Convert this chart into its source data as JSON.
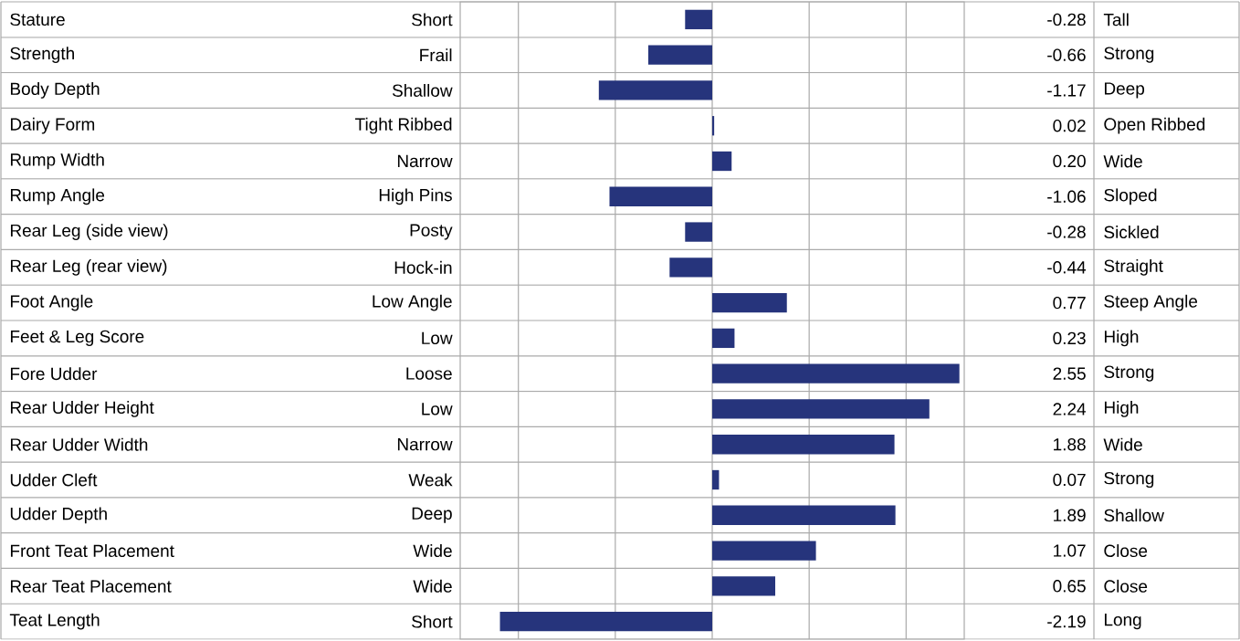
{
  "chart_data": {
    "type": "bar",
    "orientation": "horizontal",
    "categories": [
      "Stature",
      "Strength",
      "Body Depth",
      "Dairy Form",
      "Rump Width",
      "Rump Angle",
      "Rear Leg (side view)",
      "Rear Leg (rear view)",
      "Foot Angle",
      "Feet & Leg Score",
      "Fore Udder",
      "Rear Udder Height",
      "Rear Udder Width",
      "Udder Cleft",
      "Udder Depth",
      "Front Teat Placement",
      "Rear Teat Placement",
      "Teat Length"
    ],
    "values": [
      -0.28,
      -0.66,
      -1.17,
      0.02,
      0.2,
      -1.06,
      -0.28,
      -0.44,
      0.77,
      0.23,
      2.55,
      2.24,
      1.88,
      0.07,
      1.89,
      1.07,
      0.65,
      -2.19
    ],
    "value_labels": [
      "-0.28",
      "-0.66",
      "-1.17",
      "0.02",
      "0.20",
      "-1.06",
      "-0.28",
      "-0.44",
      "0.77",
      "0.23",
      "2.55",
      "2.24",
      "1.88",
      "0.07",
      "1.89",
      "1.07",
      "0.65",
      "-2.19"
    ],
    "color": "#26347c",
    "xlim": [
      -2.6,
      2.6
    ],
    "xticks": [
      {
        "value": -2,
        "label": null
      },
      {
        "value": -1,
        "label": null
      },
      {
        "value": 0,
        "label": null
      },
      {
        "value": 1,
        "label": null
      },
      {
        "value": 2,
        "label": null
      }
    ],
    "grid": "x",
    "annotations": [
      "Short",
      "Tall",
      "Frail",
      "Strong",
      "Shallow",
      "Deep",
      "Tight Ribbed",
      "Open Ribbed",
      "Narrow",
      "Wide",
      "High Pins",
      "Sloped",
      "Posty",
      "Sickled",
      "Hock-in",
      "Straight",
      "Low Angle",
      "Steep Angle",
      "Low",
      "High",
      "Loose",
      "Strong",
      "Low",
      "High",
      "Narrow",
      "Wide",
      "Weak",
      "Strong",
      "Deep",
      "Shallow",
      "Wide",
      "Close",
      "Wide",
      "Close",
      "Short",
      "Long"
    ]
  }
}
